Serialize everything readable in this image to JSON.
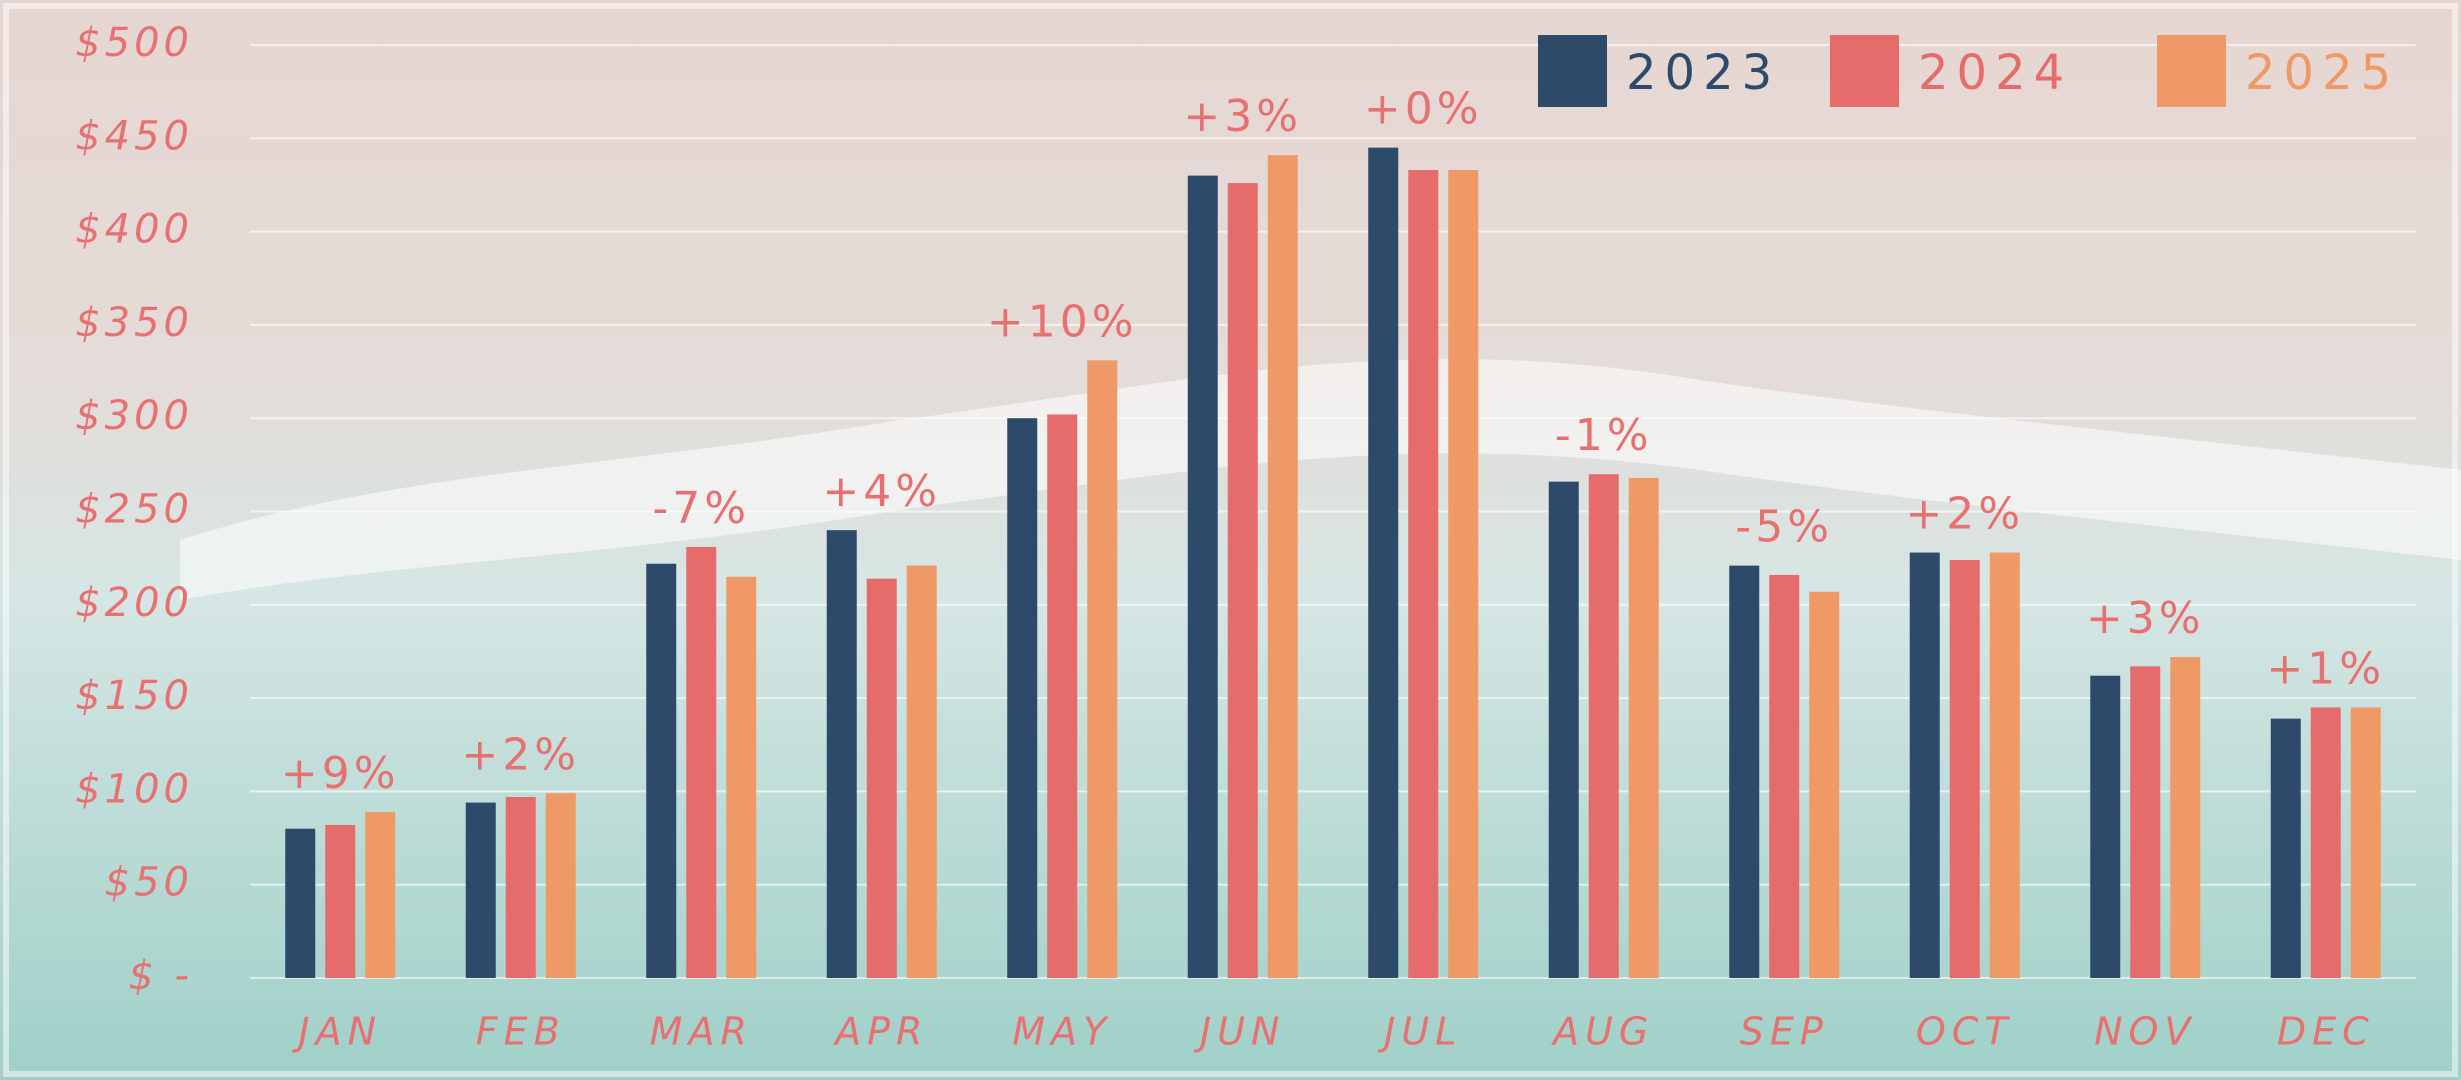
{
  "chart_data": {
    "type": "bar",
    "categories": [
      "JAN",
      "FEB",
      "MAR",
      "APR",
      "MAY",
      "JUN",
      "JUL",
      "AUG",
      "SEP",
      "OCT",
      "NOV",
      "DEC"
    ],
    "series": [
      {
        "name": "2023",
        "color": "#2d4a6b",
        "values": [
          80,
          94,
          222,
          240,
          300,
          430,
          445,
          266,
          221,
          228,
          162,
          139
        ]
      },
      {
        "name": "2024",
        "color": "#e66b6b",
        "values": [
          82,
          97,
          231,
          214,
          302,
          426,
          433,
          270,
          216,
          224,
          167,
          145
        ]
      },
      {
        "name": "2025",
        "color": "#ee9966",
        "values": [
          89,
          99,
          215,
          221,
          331,
          441,
          433,
          268,
          207,
          228,
          172,
          145
        ]
      }
    ],
    "annotations": [
      "+9%",
      "+2%",
      "-7%",
      "+4%",
      "+10%",
      "+3%",
      "+0%",
      "-1%",
      "-5%",
      "+2%",
      "+3%",
      "+1%"
    ],
    "ylim": [
      0,
      500
    ],
    "yticks": [
      {
        "value": 0,
        "label": "$ -"
      },
      {
        "value": 50,
        "label": "$50"
      },
      {
        "value": 100,
        "label": "$100"
      },
      {
        "value": 150,
        "label": "$150"
      },
      {
        "value": 200,
        "label": "$200"
      },
      {
        "value": 250,
        "label": "$250"
      },
      {
        "value": 300,
        "label": "$300"
      },
      {
        "value": 350,
        "label": "$350"
      },
      {
        "value": 400,
        "label": "$400"
      },
      {
        "value": 450,
        "label": "$450"
      },
      {
        "value": 500,
        "label": "$500"
      }
    ],
    "grid": true,
    "legend": "top-right"
  }
}
